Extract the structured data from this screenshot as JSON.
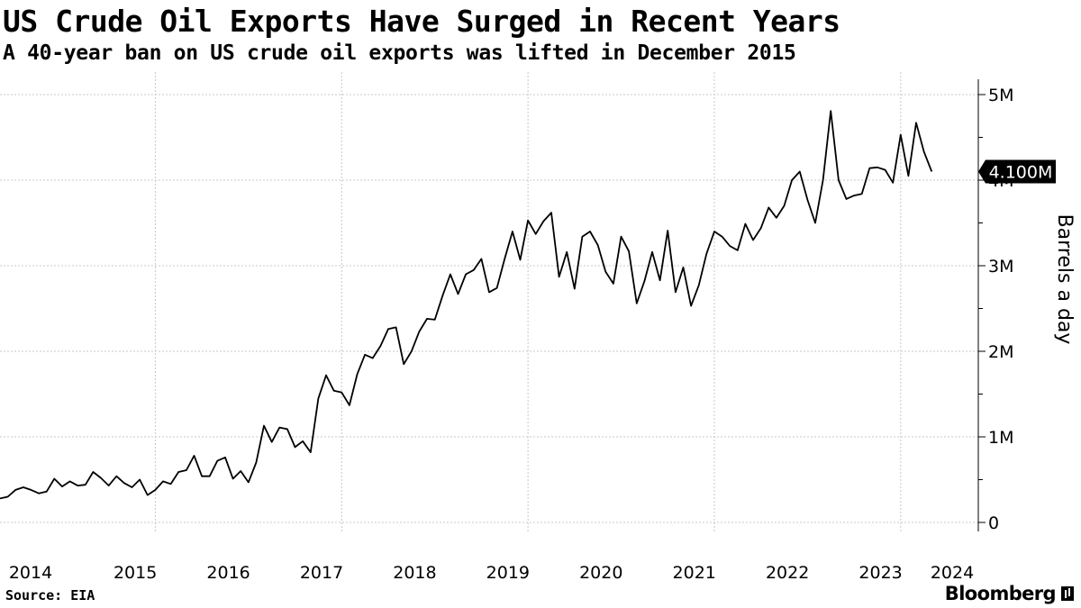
{
  "header": {
    "title": "US Crude Oil Exports Have Surged in Recent Years",
    "subtitle": "A 40-year ban on US crude oil exports was lifted in December 2015"
  },
  "footer": {
    "source": "Source: EIA",
    "brand": "Bloomberg"
  },
  "colors": {
    "line": "#000000",
    "grid": "#c8c8c8",
    "label_bg": "#000000",
    "label_text": "#ffffff"
  },
  "chart_data": {
    "type": "line",
    "title": "US Crude Oil Exports Have Surged in Recent Years",
    "subtitle": "A 40-year ban on US crude oil exports was lifted in December 2015",
    "xlabel": "",
    "ylabel": "Barrels a day",
    "ylim": [
      0,
      5000000
    ],
    "xlim": [
      2014.0,
      2024.5
    ],
    "y_ticks": [
      0,
      1000000,
      2000000,
      3000000,
      4000000,
      5000000
    ],
    "y_tick_labels": [
      "0",
      "1M",
      "2M",
      "3M",
      "4M",
      "5M"
    ],
    "x_ticks": [
      2014,
      2015,
      2016,
      2017,
      2018,
      2019,
      2020,
      2021,
      2022,
      2023,
      2024
    ],
    "x_tick_labels": [
      "2014",
      "2015",
      "2016",
      "2017",
      "2018",
      "2019",
      "2020",
      "2021",
      "2022",
      "2023",
      "2024"
    ],
    "vertical_gridlines_at": [
      2015.667,
      2017.667,
      2019.667,
      2021.667,
      2023.667
    ],
    "last_value_label": "4.100M",
    "grid": true,
    "series": [
      {
        "name": "US crude oil exports",
        "start": "2014-01",
        "frequency": "monthly",
        "values": [
          280000,
          300000,
          380000,
          410000,
          380000,
          340000,
          360000,
          510000,
          420000,
          480000,
          430000,
          440000,
          590000,
          520000,
          430000,
          540000,
          460000,
          410000,
          500000,
          320000,
          380000,
          480000,
          450000,
          590000,
          610000,
          780000,
          540000,
          540000,
          720000,
          760000,
          510000,
          600000,
          470000,
          700000,
          1130000,
          940000,
          1110000,
          1090000,
          880000,
          950000,
          820000,
          1450000,
          1720000,
          1540000,
          1520000,
          1370000,
          1730000,
          1960000,
          1920000,
          2060000,
          2260000,
          2280000,
          1850000,
          2000000,
          2230000,
          2380000,
          2370000,
          2650000,
          2900000,
          2670000,
          2900000,
          2950000,
          3080000,
          2690000,
          2740000,
          3080000,
          3400000,
          3070000,
          3530000,
          3370000,
          3520000,
          3620000,
          2870000,
          3160000,
          2730000,
          3340000,
          3400000,
          3240000,
          2930000,
          2790000,
          3340000,
          3170000,
          2560000,
          2820000,
          3160000,
          2830000,
          3410000,
          2690000,
          2980000,
          2530000,
          2770000,
          3140000,
          3400000,
          3340000,
          3230000,
          3180000,
          3490000,
          3300000,
          3440000,
          3680000,
          3560000,
          3700000,
          4000000,
          4100000,
          3770000,
          3500000,
          4000000,
          4810000,
          4000000,
          3780000,
          3820000,
          3840000,
          4140000,
          4150000,
          4120000,
          3970000,
          4530000,
          4050000,
          4670000,
          4330000,
          4100000
        ]
      }
    ]
  }
}
